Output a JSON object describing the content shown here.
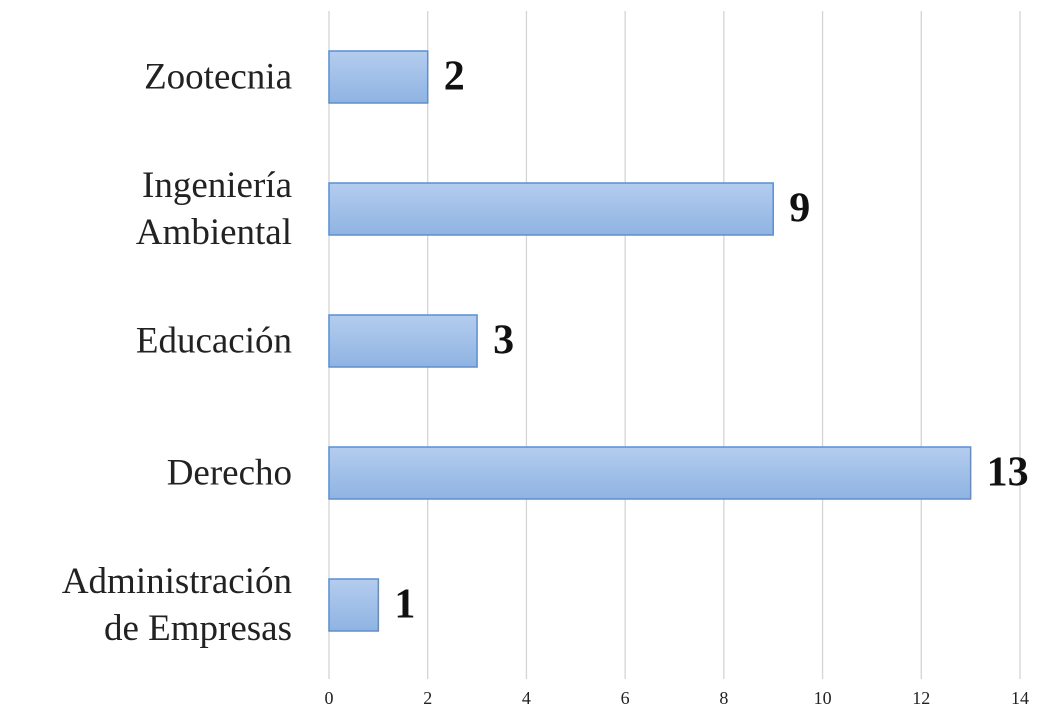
{
  "chart_data": {
    "type": "bar",
    "orientation": "horizontal",
    "categories": [
      "Administración\nde Empresas",
      "Derecho",
      "Educación",
      "Ingeniería\nAmbiental",
      "Zootecnia"
    ],
    "values": [
      1,
      13,
      3,
      9,
      2
    ],
    "color": "#9dbde8",
    "edge_color": "#5b8fd1",
    "xlim": [
      0,
      14
    ],
    "xticks": [
      0,
      2,
      4,
      6,
      8,
      10,
      12,
      14
    ],
    "grid": true
  }
}
